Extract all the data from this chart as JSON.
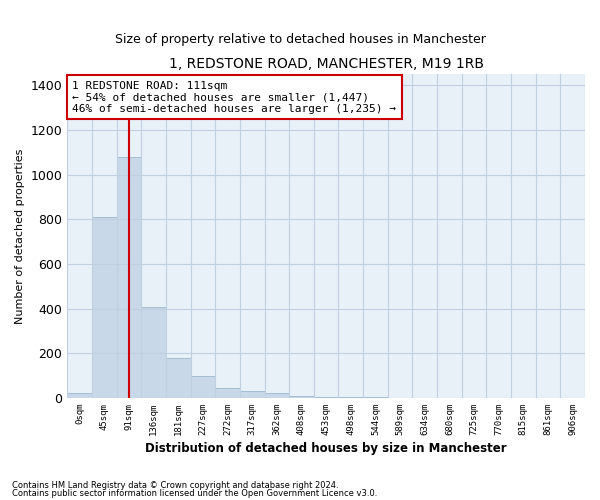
{
  "title": "1, REDSTONE ROAD, MANCHESTER, M19 1RB",
  "subtitle": "Size of property relative to detached houses in Manchester",
  "xlabel": "Distribution of detached houses by size in Manchester",
  "ylabel": "Number of detached properties",
  "footnote1": "Contains HM Land Registry data © Crown copyright and database right 2024.",
  "footnote2": "Contains public sector information licensed under the Open Government Licence v3.0.",
  "bar_labels": [
    "0sqm",
    "45sqm",
    "91sqm",
    "136sqm",
    "181sqm",
    "227sqm",
    "272sqm",
    "317sqm",
    "362sqm",
    "408sqm",
    "453sqm",
    "498sqm",
    "544sqm",
    "589sqm",
    "634sqm",
    "680sqm",
    "725sqm",
    "770sqm",
    "815sqm",
    "861sqm",
    "906sqm"
  ],
  "bar_values": [
    20,
    810,
    1080,
    405,
    180,
    100,
    45,
    30,
    20,
    10,
    5,
    3,
    2,
    0,
    0,
    0,
    0,
    0,
    0,
    0,
    0
  ],
  "bar_color": "#c8d8e8",
  "bar_edge_color": "#99b8cc",
  "grid_color": "#c0d0e0",
  "background_color": "#e8f0f8",
  "vline_x": 2.0,
  "vline_color": "#cc0000",
  "annotation_text": "1 REDSTONE ROAD: 111sqm\n← 54% of detached houses are smaller (1,447)\n46% of semi-detached houses are larger (1,235) →",
  "annotation_box_color": "#cc0000",
  "ylim": [
    0,
    1450
  ],
  "yticks": [
    0,
    200,
    400,
    600,
    800,
    1000,
    1200,
    1400
  ],
  "title_fontsize": 10,
  "subtitle_fontsize": 9
}
